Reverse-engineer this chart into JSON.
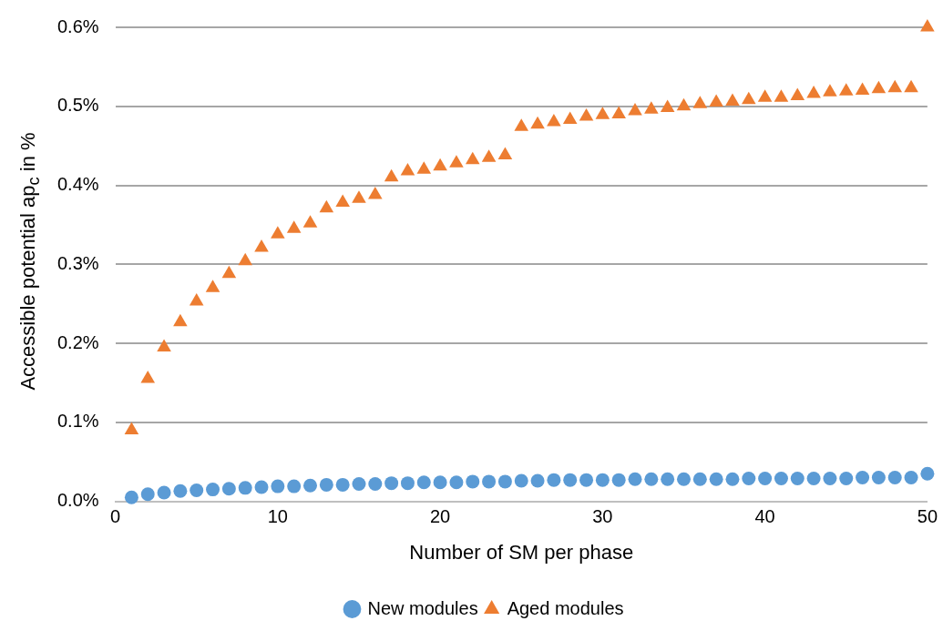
{
  "chart_data": {
    "type": "scatter",
    "xlabel": "Number of SM per phase",
    "ylabel": "Accessible potential ap$_{c}$ in %",
    "x": [
      1,
      2,
      3,
      4,
      5,
      6,
      7,
      8,
      9,
      10,
      11,
      12,
      13,
      14,
      15,
      16,
      17,
      18,
      19,
      20,
      21,
      22,
      23,
      24,
      25,
      26,
      27,
      28,
      29,
      30,
      31,
      32,
      33,
      34,
      35,
      36,
      37,
      38,
      39,
      40,
      41,
      42,
      43,
      44,
      45,
      46,
      47,
      48,
      49,
      50
    ],
    "series": [
      {
        "name": "New modules",
        "color": "#5b9bd5",
        "marker": "circle",
        "values": [
          0.005,
          0.009,
          0.011,
          0.013,
          0.014,
          0.015,
          0.016,
          0.017,
          0.018,
          0.019,
          0.019,
          0.02,
          0.021,
          0.021,
          0.022,
          0.022,
          0.023,
          0.023,
          0.024,
          0.024,
          0.024,
          0.025,
          0.025,
          0.025,
          0.026,
          0.026,
          0.027,
          0.027,
          0.027,
          0.027,
          0.027,
          0.028,
          0.028,
          0.028,
          0.028,
          0.028,
          0.028,
          0.028,
          0.029,
          0.029,
          0.029,
          0.029,
          0.029,
          0.029,
          0.029,
          0.03,
          0.03,
          0.03,
          0.03,
          0.035
        ]
      },
      {
        "name": "Aged modules",
        "color": "#ed7d31",
        "marker": "triangle",
        "values": [
          0.09,
          0.155,
          0.195,
          0.227,
          0.253,
          0.27,
          0.288,
          0.304,
          0.321,
          0.338,
          0.345,
          0.352,
          0.371,
          0.378,
          0.383,
          0.388,
          0.41,
          0.418,
          0.42,
          0.424,
          0.428,
          0.432,
          0.435,
          0.438,
          0.474,
          0.477,
          0.48,
          0.483,
          0.487,
          0.489,
          0.49,
          0.494,
          0.496,
          0.498,
          0.5,
          0.503,
          0.505,
          0.506,
          0.508,
          0.511,
          0.511,
          0.513,
          0.516,
          0.518,
          0.519,
          0.52,
          0.522,
          0.523,
          0.523,
          0.6
        ]
      }
    ],
    "xlim": [
      0,
      50
    ],
    "xticks": [
      0,
      10,
      20,
      30,
      40,
      50
    ],
    "ylim": [
      0,
      0.6
    ],
    "yticks": [
      {
        "value": 0,
        "label": "0.0%"
      },
      {
        "value": 0.1,
        "label": "0.1%"
      },
      {
        "value": 0.2,
        "label": "0.2%"
      },
      {
        "value": 0.3,
        "label": "0.3%"
      },
      {
        "value": 0.4,
        "label": "0.4%"
      },
      {
        "value": 0.5,
        "label": "0.5%"
      },
      {
        "value": 0.6,
        "label": "0.6%"
      }
    ],
    "grid": "y",
    "legend": "bottom"
  }
}
